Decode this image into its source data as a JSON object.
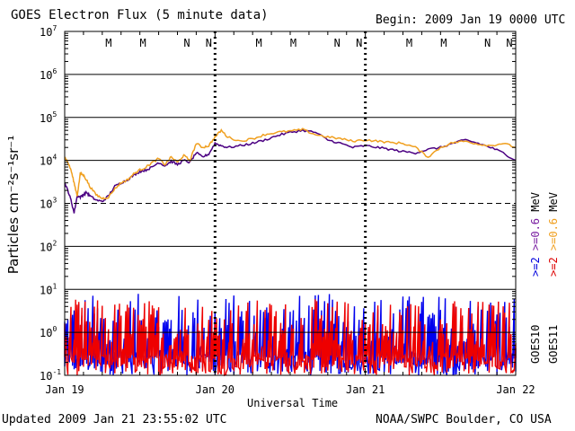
{
  "header": {
    "title": "GOES Electron Flux (5 minute data)",
    "begin": "Begin: 2009 Jan 19 0000 UTC"
  },
  "footer": {
    "updated": "Updated 2009 Jan 21 23:55:02 UTC",
    "credit": "NOAA/SWPC Boulder, CO USA"
  },
  "chart_data": {
    "type": "line",
    "title": "GOES Electron Flux (5 minute data)",
    "xlabel": "Universal Time",
    "ylabel": "Particles cm⁻²s⁻¹sr⁻¹",
    "yscale": "log",
    "ylim": [
      0.1,
      10000000
    ],
    "xlim": [
      0,
      72
    ],
    "x_ticks": [
      {
        "x": 0,
        "label": "Jan 19"
      },
      {
        "x": 24,
        "label": "Jan 20"
      },
      {
        "x": 48,
        "label": "Jan 21"
      },
      {
        "x": 72,
        "label": "Jan 22"
      }
    ],
    "y_ticks": [
      {
        "value": 0.1,
        "base": "10",
        "exp": "-1"
      },
      {
        "value": 1,
        "base": "10",
        "exp": "0"
      },
      {
        "value": 10,
        "base": "10",
        "exp": "1"
      },
      {
        "value": 100,
        "base": "10",
        "exp": "2"
      },
      {
        "value": 1000,
        "base": "10",
        "exp": "3"
      },
      {
        "value": 10000,
        "base": "10",
        "exp": "4"
      },
      {
        "value": 100000,
        "base": "10",
        "exp": "5"
      },
      {
        "value": 1000000,
        "base": "10",
        "exp": "6"
      },
      {
        "value": 10000000,
        "base": "10",
        "exp": "7"
      }
    ],
    "threshold": 1000,
    "markers": [
      {
        "x": 7,
        "label": "M",
        "color": "#0000dd"
      },
      {
        "x": 12.5,
        "label": "M",
        "color": "#dd0000"
      },
      {
        "x": 19.5,
        "label": "N",
        "color": "#0000dd"
      },
      {
        "x": 23,
        "label": "N",
        "color": "#dd0000"
      },
      {
        "x": 31,
        "label": "M",
        "color": "#0000dd"
      },
      {
        "x": 36.5,
        "label": "M",
        "color": "#dd0000"
      },
      {
        "x": 43.5,
        "label": "N",
        "color": "#0000dd"
      },
      {
        "x": 47,
        "label": "N",
        "color": "#dd0000"
      },
      {
        "x": 55,
        "label": "M",
        "color": "#0000dd"
      },
      {
        "x": 60.5,
        "label": "M",
        "color": "#dd0000"
      },
      {
        "x": 67.5,
        "label": "N",
        "color": "#0000dd"
      },
      {
        "x": 71,
        "label": "N",
        "color": "#dd0000"
      }
    ],
    "legend": [
      {
        "text": "GOES10",
        "color": "#000000"
      },
      {
        "text": ">=2 >=0.6 MeV",
        "color": "#0000dd",
        "parts": [
          {
            "t": ">=2",
            "c": "#0000dd"
          },
          {
            "t": " >=0.6",
            "c": "#7a1fa2"
          },
          {
            "t": " MeV",
            "c": "#000000"
          }
        ]
      },
      {
        "text": "GOES11",
        "color": "#000000"
      },
      {
        "text": ">=2 >=0.6 MeV",
        "color": "#dd0000",
        "parts": [
          {
            "t": ">=2",
            "c": "#dd0000"
          },
          {
            "t": " >=0.6",
            "c": "#f0a020"
          },
          {
            "t": " MeV",
            "c": "#000000"
          }
        ]
      }
    ],
    "series": [
      {
        "name": "GOES10 >=0.6 MeV",
        "color": "#4b0082",
        "x": [
          0,
          0.5,
          1,
          1.5,
          2,
          2.5,
          3,
          3.5,
          4,
          5,
          6,
          7,
          8,
          9,
          10,
          11,
          12,
          13,
          14,
          15,
          16,
          17,
          18,
          19,
          20,
          21,
          22,
          23,
          24,
          25,
          26,
          28,
          30,
          32,
          34,
          36,
          38,
          40,
          42,
          44,
          46,
          48,
          50,
          52,
          54,
          56,
          58,
          60,
          62,
          64,
          66,
          68,
          70,
          72
        ],
        "y": [
          3000,
          2000,
          1200,
          600,
          1500,
          1400,
          1600,
          1800,
          1500,
          1200,
          1100,
          1500,
          2500,
          3000,
          3500,
          4500,
          5500,
          6000,
          7000,
          9000,
          7500,
          9500,
          8000,
          10000,
          9000,
          15000,
          12000,
          14000,
          25000,
          22000,
          20000,
          22000,
          25000,
          30000,
          38000,
          45000,
          50000,
          45000,
          30000,
          25000,
          20000,
          22000,
          20000,
          18000,
          16000,
          15000,
          18000,
          20000,
          25000,
          30000,
          25000,
          20000,
          15000,
          10000
        ]
      },
      {
        "name": "GOES11 >=0.6 MeV",
        "color": "#f0a020",
        "x": [
          0,
          0.5,
          1,
          1.5,
          2,
          2.5,
          3,
          3.5,
          4,
          5,
          6,
          7,
          8,
          9,
          10,
          11,
          12,
          13,
          14,
          15,
          16,
          17,
          18,
          19,
          20,
          21,
          22,
          23,
          24,
          25,
          26,
          28,
          30,
          32,
          34,
          36,
          38,
          40,
          42,
          44,
          46,
          48,
          50,
          52,
          54,
          56,
          58,
          60,
          62,
          64,
          66,
          68,
          70,
          72
        ],
        "y": [
          12000,
          9000,
          6000,
          3000,
          1500,
          5000,
          4500,
          3500,
          2500,
          1600,
          1300,
          1400,
          2200,
          3000,
          3500,
          4800,
          6000,
          7000,
          9000,
          11000,
          8000,
          12000,
          9000,
          13000,
          10000,
          25000,
          20000,
          22000,
          35000,
          50000,
          35000,
          28000,
          32000,
          40000,
          45000,
          48000,
          52000,
          40000,
          35000,
          32000,
          28000,
          30000,
          28000,
          26000,
          25000,
          20000,
          12000,
          20000,
          26000,
          28000,
          24000,
          22000,
          25000,
          20000
        ]
      },
      {
        "name": "GOES10 >=2 MeV",
        "color": "#0000ee",
        "noise": "dense",
        "baseline": 1.5,
        "range": [
          0.1,
          8
        ]
      },
      {
        "name": "GOES11 >=2 MeV",
        "color": "#ee0000",
        "noise": "dense",
        "baseline": 0.5,
        "range": [
          0.1,
          6
        ]
      }
    ]
  }
}
